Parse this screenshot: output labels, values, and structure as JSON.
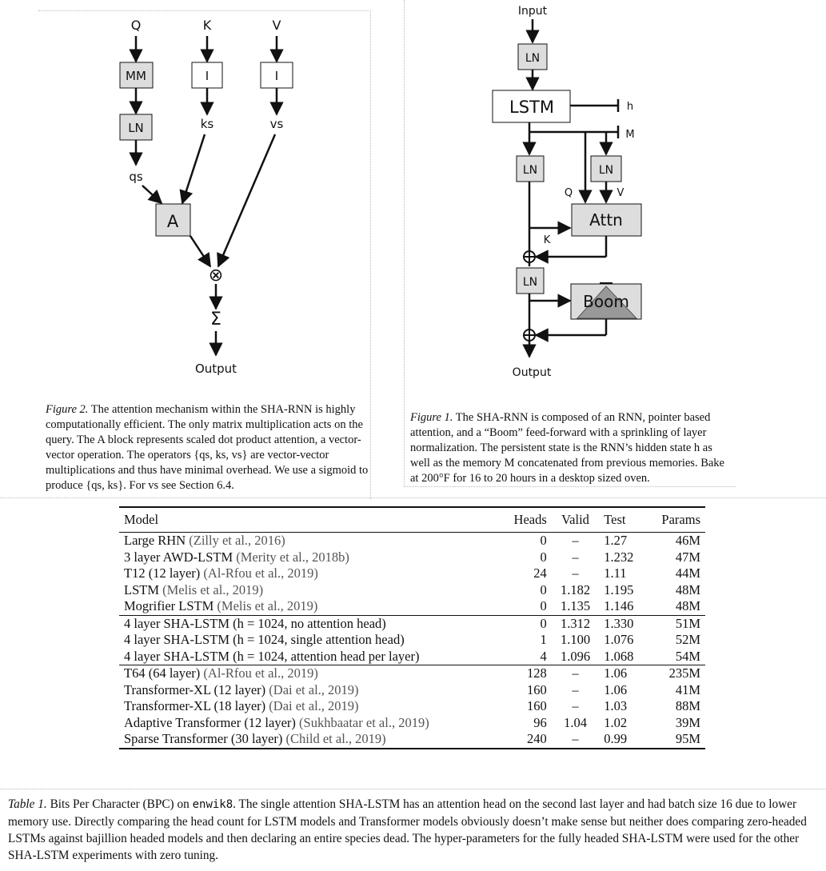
{
  "figure2": {
    "nodes": {
      "q": "Q",
      "k": "K",
      "v": "V",
      "mm": "MM",
      "i1": "I",
      "i2": "I",
      "ln": "LN",
      "ks": "ks",
      "vs": "vs",
      "qs": "qs",
      "a": "A",
      "mult": "⊗",
      "sum": "Σ",
      "output": "Output"
    },
    "caption_label": "Figure 2.",
    "caption_text": " The attention mechanism within the SHA-RNN is highly computationally efficient. The only matrix multiplication acts on the query.  The A block represents scaled dot product attention, a vector-vector operation. The operators {qs, ks, vs} are vector-vector multiplications and thus have minimal overhead. We use a sigmoid to produce {qs, ks}.  For vs see Section 6.4."
  },
  "figure1": {
    "nodes": {
      "input": "Input",
      "ln1": "LN",
      "lstm": "LSTM",
      "h": "h",
      "m": "M",
      "ln2": "LN",
      "ln3": "LN",
      "q": "Q",
      "v": "V",
      "attn": "Attn",
      "k": "K",
      "ln4": "LN",
      "boom": "Boom",
      "output": "Output"
    },
    "caption_label": "Figure 1.",
    "caption_text": " The SHA-RNN is composed of an RNN, pointer based attention, and a “Boom” feed-forward with a sprinkling of layer normalization.  The persistent state is the RNN’s hidden state h as well as the memory M concatenated from previous memories. Bake at 200°F for 16 to 20 hours in a desktop sized oven."
  },
  "table": {
    "headers": [
      "Model",
      "Heads",
      "Valid",
      "Test",
      "Params"
    ],
    "groups": [
      [
        {
          "model": "Large RHN",
          "cite": "(Zilly et al., 2016)",
          "heads": "0",
          "valid": "–",
          "test": "1.27",
          "params": "46M"
        },
        {
          "model": "3 layer AWD-LSTM",
          "cite": "(Merity et al., 2018b)",
          "heads": "0",
          "valid": "–",
          "test": "1.232",
          "params": "47M"
        },
        {
          "model": "T12 (12 layer)",
          "cite": "(Al-Rfou et al., 2019)",
          "heads": "24",
          "valid": "–",
          "test": "1.11",
          "params": "44M"
        },
        {
          "model": "LSTM",
          "cite": "(Melis et al., 2019)",
          "heads": "0",
          "valid": "1.182",
          "test": "1.195",
          "params": "48M"
        },
        {
          "model": "Mogrifier LSTM",
          "cite": "(Melis et al., 2019)",
          "heads": "0",
          "valid": "1.135",
          "test": "1.146",
          "params": "48M"
        }
      ],
      [
        {
          "model": "4 layer SHA-LSTM (h = 1024, no attention head)",
          "cite": "",
          "heads": "0",
          "valid": "1.312",
          "test": "1.330",
          "params": "51M"
        },
        {
          "model": "4 layer SHA-LSTM (h = 1024, single attention head)",
          "cite": "",
          "heads": "1",
          "valid": "1.100",
          "test": "1.076",
          "params": "52M"
        },
        {
          "model": "4 layer SHA-LSTM (h = 1024, attention head per layer)",
          "cite": "",
          "heads": "4",
          "valid": "1.096",
          "test": "1.068",
          "params": "54M"
        }
      ],
      [
        {
          "model": "T64 (64 layer)",
          "cite": "(Al-Rfou et al., 2019)",
          "heads": "128",
          "valid": "–",
          "test": "1.06",
          "params": "235M"
        },
        {
          "model": "Transformer-XL (12 layer)",
          "cite": "(Dai et al., 2019)",
          "heads": "160",
          "valid": "–",
          "test": "1.06",
          "params": "41M"
        },
        {
          "model": "Transformer-XL (18 layer)",
          "cite": "(Dai et al., 2019)",
          "heads": "160",
          "valid": "–",
          "test": "1.03",
          "params": "88M"
        },
        {
          "model": "Adaptive Transformer (12 layer)",
          "cite": "(Sukhbaatar et al., 2019)",
          "heads": "96",
          "valid": "1.04",
          "test": "1.02",
          "params": "39M"
        },
        {
          "model": "Sparse Transformer (30 layer)",
          "cite": "(Child et al., 2019)",
          "heads": "240",
          "valid": "–",
          "test": "0.99",
          "params": "95M"
        }
      ]
    ],
    "caption_label": "Table 1.",
    "caption_pre": " Bits Per Character (BPC) on ",
    "caption_code": "enwik8",
    "caption_post": ". The single attention SHA-LSTM has an attention head on the second last layer and had batch size 16 due to lower memory use. Directly comparing the head count for LSTM models and Transformer models obviously doesn’t make sense but neither does comparing zero-headed LSTMs against bajillion headed models and then declaring an entire species dead. The hyper-parameters for the fully headed SHA-LSTM were used for the other SHA-LSTM experiments with zero tuning."
  }
}
